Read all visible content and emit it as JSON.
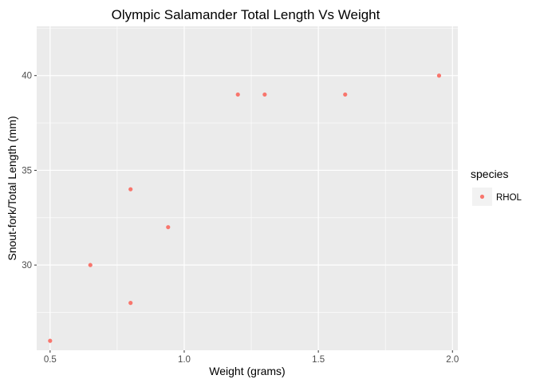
{
  "chart_data": {
    "type": "scatter",
    "title": "Olympic Salamander Total Length Vs Weight",
    "xlabel": "Weight (grams)",
    "ylabel": "Snout-fork/Total Length (mm)",
    "xlim": [
      0.45,
      2.02
    ],
    "ylim": [
      25.5,
      42.6
    ],
    "x_ticks": [
      0.5,
      1.0,
      1.5,
      2.0
    ],
    "x_tick_labels": [
      "0.5",
      "1.0",
      "1.5",
      "2.0"
    ],
    "y_ticks": [
      30,
      35,
      40
    ],
    "y_tick_labels": [
      "30",
      "35",
      "40"
    ],
    "grid": true,
    "legend": {
      "title": "species",
      "position": "right"
    },
    "series": [
      {
        "name": "RHOL",
        "color": "#f8766d",
        "points": [
          {
            "x": 0.5,
            "y": 26
          },
          {
            "x": 0.65,
            "y": 30
          },
          {
            "x": 0.8,
            "y": 28
          },
          {
            "x": 0.8,
            "y": 34
          },
          {
            "x": 0.94,
            "y": 32
          },
          {
            "x": 1.2,
            "y": 39
          },
          {
            "x": 1.3,
            "y": 39
          },
          {
            "x": 1.6,
            "y": 39
          },
          {
            "x": 1.95,
            "y": 40
          }
        ]
      }
    ]
  }
}
